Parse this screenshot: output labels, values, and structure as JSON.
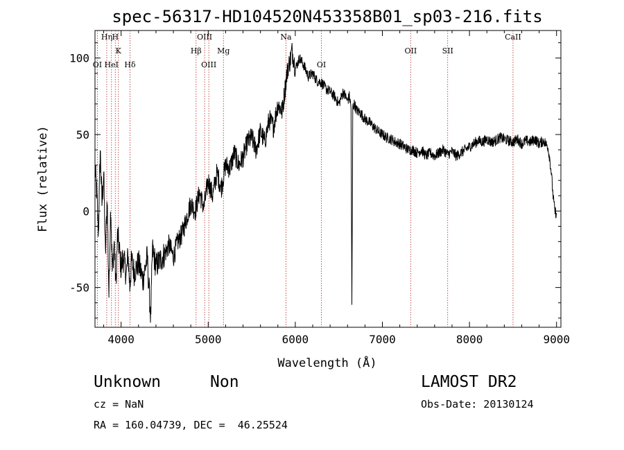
{
  "chart_data": {
    "type": "line",
    "title": "spec-56317-HD104520N453358B01_sp03-216.fits",
    "xlabel": "Wavelength (Å)",
    "ylabel": "Flux (relative)",
    "xlim": [
      3700,
      9050
    ],
    "ylim": [
      -76,
      118
    ],
    "x_ticks": [
      4000,
      5000,
      6000,
      7000,
      8000,
      9000
    ],
    "y_ticks": [
      -50,
      0,
      50,
      100
    ],
    "grid": false,
    "series": [
      {
        "line_color": "#000000",
        "x": [
          3700,
          3720,
          3740,
          3760,
          3780,
          3800,
          3820,
          3840,
          3860,
          3880,
          3900,
          3920,
          3940,
          3960,
          3980,
          4000,
          4020,
          4040,
          4060,
          4080,
          4100,
          4120,
          4150,
          4200,
          4250,
          4300,
          4340,
          4360,
          4400,
          4450,
          4500,
          4550,
          4600,
          4650,
          4700,
          4750,
          4800,
          4850,
          4900,
          4950,
          5000,
          5050,
          5100,
          5150,
          5200,
          5250,
          5300,
          5350,
          5400,
          5450,
          5500,
          5550,
          5600,
          5650,
          5700,
          5750,
          5800,
          5850,
          5900,
          5920,
          5940,
          5960,
          5980,
          6000,
          6050,
          6100,
          6150,
          6200,
          6250,
          6300,
          6350,
          6400,
          6450,
          6500,
          6550,
          6600,
          6620,
          6640,
          6650,
          6660,
          6680,
          6700,
          6750,
          6800,
          6850,
          6900,
          6950,
          7000,
          7050,
          7100,
          7150,
          7200,
          7250,
          7300,
          7350,
          7400,
          7450,
          7500,
          7550,
          7600,
          7650,
          7700,
          7750,
          7800,
          7850,
          7900,
          7950,
          8000,
          8050,
          8100,
          8150,
          8200,
          8250,
          8300,
          8350,
          8400,
          8450,
          8500,
          8550,
          8600,
          8650,
          8700,
          8750,
          8800,
          8850,
          8900,
          8920,
          8940,
          8960,
          8980,
          9000
        ],
        "y": [
          28,
          12,
          -15,
          40,
          5,
          25,
          -30,
          10,
          -55,
          5,
          -40,
          -20,
          -48,
          -15,
          -25,
          -38,
          -30,
          -35,
          -42,
          -28,
          -50,
          -32,
          -40,
          -34,
          -45,
          -30,
          -70,
          -25,
          -36,
          -32,
          -28,
          -22,
          -30,
          -20,
          -15,
          -5,
          5,
          0,
          12,
          2,
          20,
          10,
          25,
          15,
          30,
          28,
          38,
          30,
          35,
          45,
          48,
          40,
          52,
          45,
          60,
          55,
          70,
          65,
          88,
          95,
          98,
          105,
          100,
          93,
          100,
          95,
          88,
          90,
          85,
          84,
          80,
          78,
          75,
          70,
          78,
          72,
          75,
          68,
          -62,
          68,
          70,
          66,
          64,
          60,
          58,
          55,
          52,
          50,
          48,
          47,
          45,
          44,
          42,
          40,
          40,
          38,
          40,
          36,
          38,
          36,
          38,
          40,
          37,
          39,
          36,
          38,
          40,
          42,
          44,
          46,
          45,
          47,
          45,
          46,
          48,
          47,
          46,
          45,
          47,
          44,
          46,
          45,
          47,
          44,
          46,
          42,
          35,
          25,
          10,
          0,
          -2
        ]
      }
    ],
    "emission_lines": [
      {
        "label": "OI",
        "x": 3727,
        "label_y": 94
      },
      {
        "label": "Hη",
        "x": 3835,
        "label_y": 112
      },
      {
        "label": "HeI",
        "x": 3889,
        "label_y": 94
      },
      {
        "label": "H",
        "x": 3933,
        "label_y": 112
      },
      {
        "label": "K",
        "x": 3969,
        "label_y": 103
      },
      {
        "label": "Hδ",
        "x": 4102,
        "label_y": 94
      },
      {
        "label": "Hβ",
        "x": 4861,
        "label_y": 103
      },
      {
        "label": "OIII",
        "x": 4959,
        "label_y": 112
      },
      {
        "label": "OIII",
        "x": 5007,
        "label_y": 94
      },
      {
        "label": "Mg",
        "x": 5175,
        "label_y": 103
      },
      {
        "label": "Na",
        "x": 5893,
        "label_y": 112
      },
      {
        "label": "OI",
        "x": 6300,
        "label_y": 94
      },
      {
        "label": "OII",
        "x": 7325,
        "label_y": 103
      },
      {
        "label": "SII",
        "x": 7750,
        "label_y": 103
      },
      {
        "label": "CaII",
        "x": 8500,
        "label_y": 112
      }
    ]
  },
  "footer": {
    "object_class": "Unknown",
    "subclass": "Non",
    "survey": "LAMOST DR2",
    "redshift": "cz = NaN",
    "obs_date": "Obs-Date: 20130124",
    "coordinates": "RA = 160.04739, DEC =  46.25524"
  },
  "colors": {
    "spectrum": "#000000",
    "emission_line_marker": "#b22222",
    "axes": "#000000"
  }
}
